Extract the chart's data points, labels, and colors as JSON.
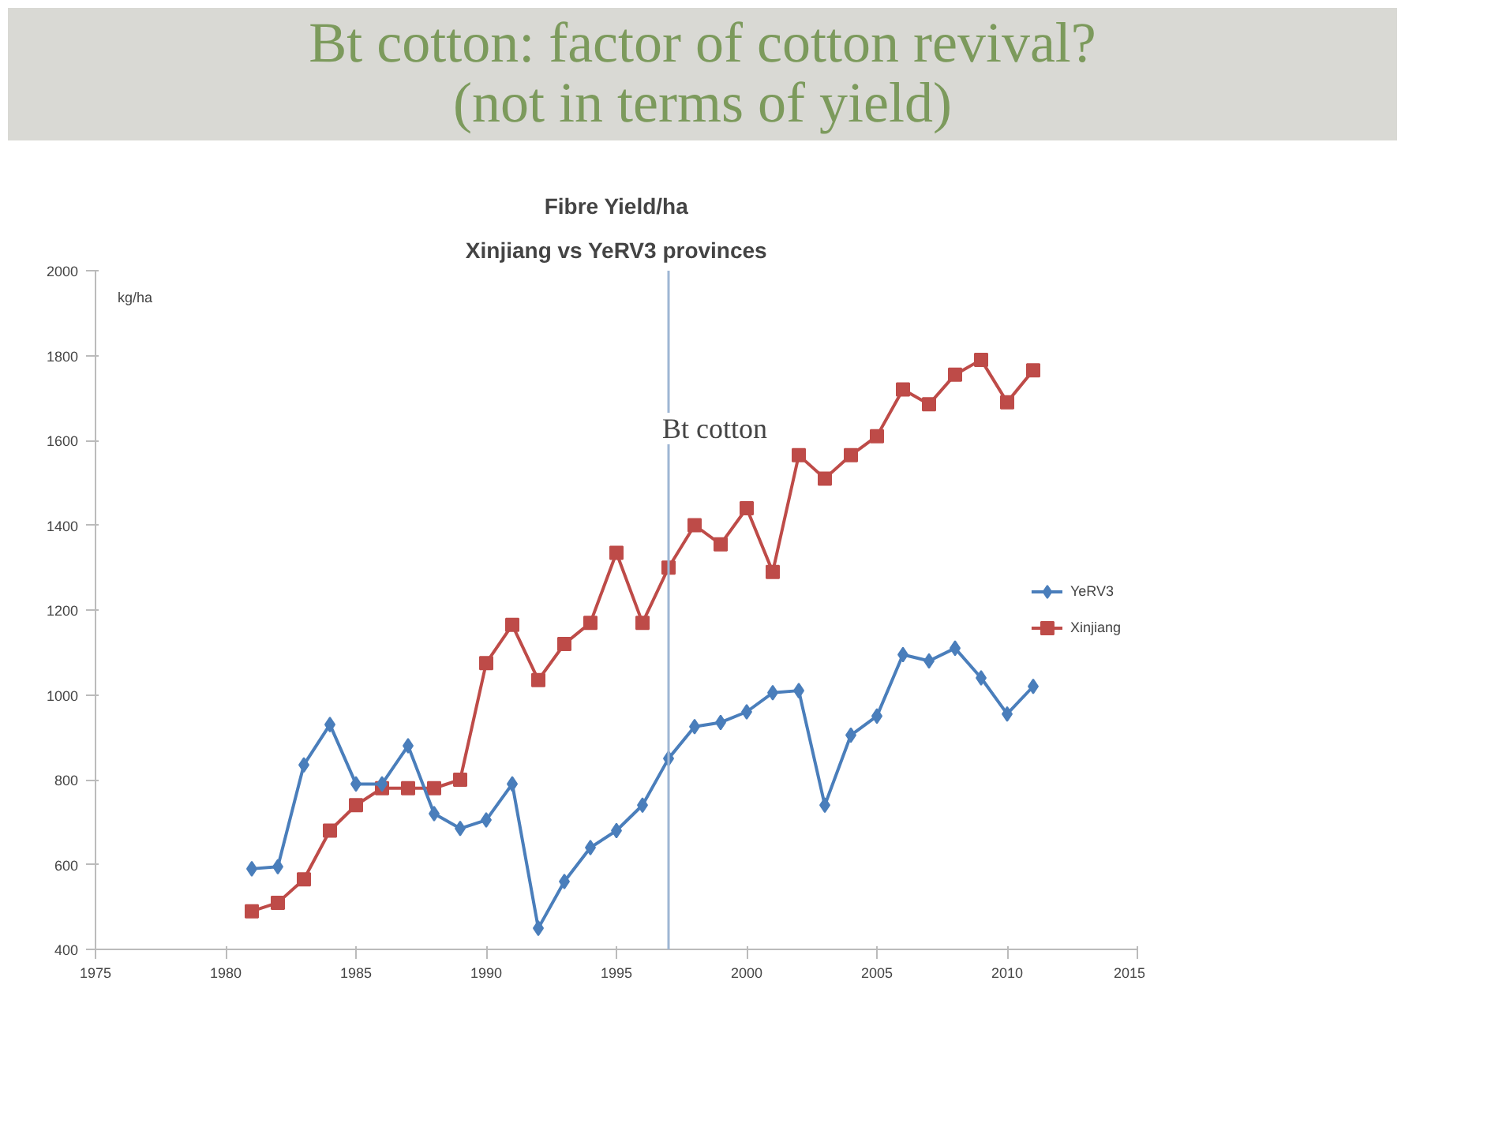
{
  "chart_data": {
    "type": "line",
    "title": "Fibre Yield/ha",
    "subtitle": "Xinjiang vs YeRV3 provinces",
    "ylabel": "kg/ha",
    "annotations": [
      "Bt cotton: factor of cotton revival?",
      "(not in terms of yield)"
    ],
    "x": [
      1981,
      1982,
      1983,
      1984,
      1985,
      1986,
      1987,
      1988,
      1989,
      1990,
      1991,
      1992,
      1993,
      1994,
      1995,
      1996,
      1997,
      1998,
      1999,
      2000,
      2001,
      2002,
      2003,
      2004,
      2005,
      2006,
      2007,
      2008,
      2009,
      2010,
      2011
    ],
    "series": [
      {
        "name": "YeRV3",
        "color": "#4a7ebb",
        "marker": "diamond",
        "values": [
          590,
          595,
          835,
          930,
          790,
          790,
          880,
          720,
          685,
          705,
          790,
          450,
          560,
          640,
          680,
          740,
          850,
          925,
          935,
          960,
          1005,
          1010,
          740,
          905,
          950,
          1095,
          1080,
          1110,
          1040,
          955,
          1020
        ]
      },
      {
        "name": "Xinjiang",
        "color": "#be4b48",
        "marker": "square",
        "values": [
          490,
          510,
          565,
          680,
          740,
          780,
          780,
          780,
          800,
          1075,
          1165,
          1035,
          1120,
          1170,
          1335,
          1170,
          1300,
          1400,
          1355,
          1440,
          1290,
          1565,
          1510,
          1565,
          1610,
          1720,
          1685,
          1755,
          1790,
          1690,
          1765
        ]
      }
    ],
    "xlim": [
      1975,
      2015
    ],
    "xticks": [
      1975,
      1980,
      1985,
      1990,
      1995,
      2000,
      2005,
      2010,
      2015
    ],
    "ylim": [
      400,
      2000
    ],
    "yticks": [
      400,
      600,
      800,
      1000,
      1200,
      1400,
      1600,
      1800,
      2000
    ],
    "ref_lines": [
      {
        "axis": "x",
        "value": 1997,
        "label": "Bt cotton",
        "color": "#9eb6d4"
      }
    ],
    "grid": false,
    "legend": "right",
    "line_style": "solid"
  }
}
